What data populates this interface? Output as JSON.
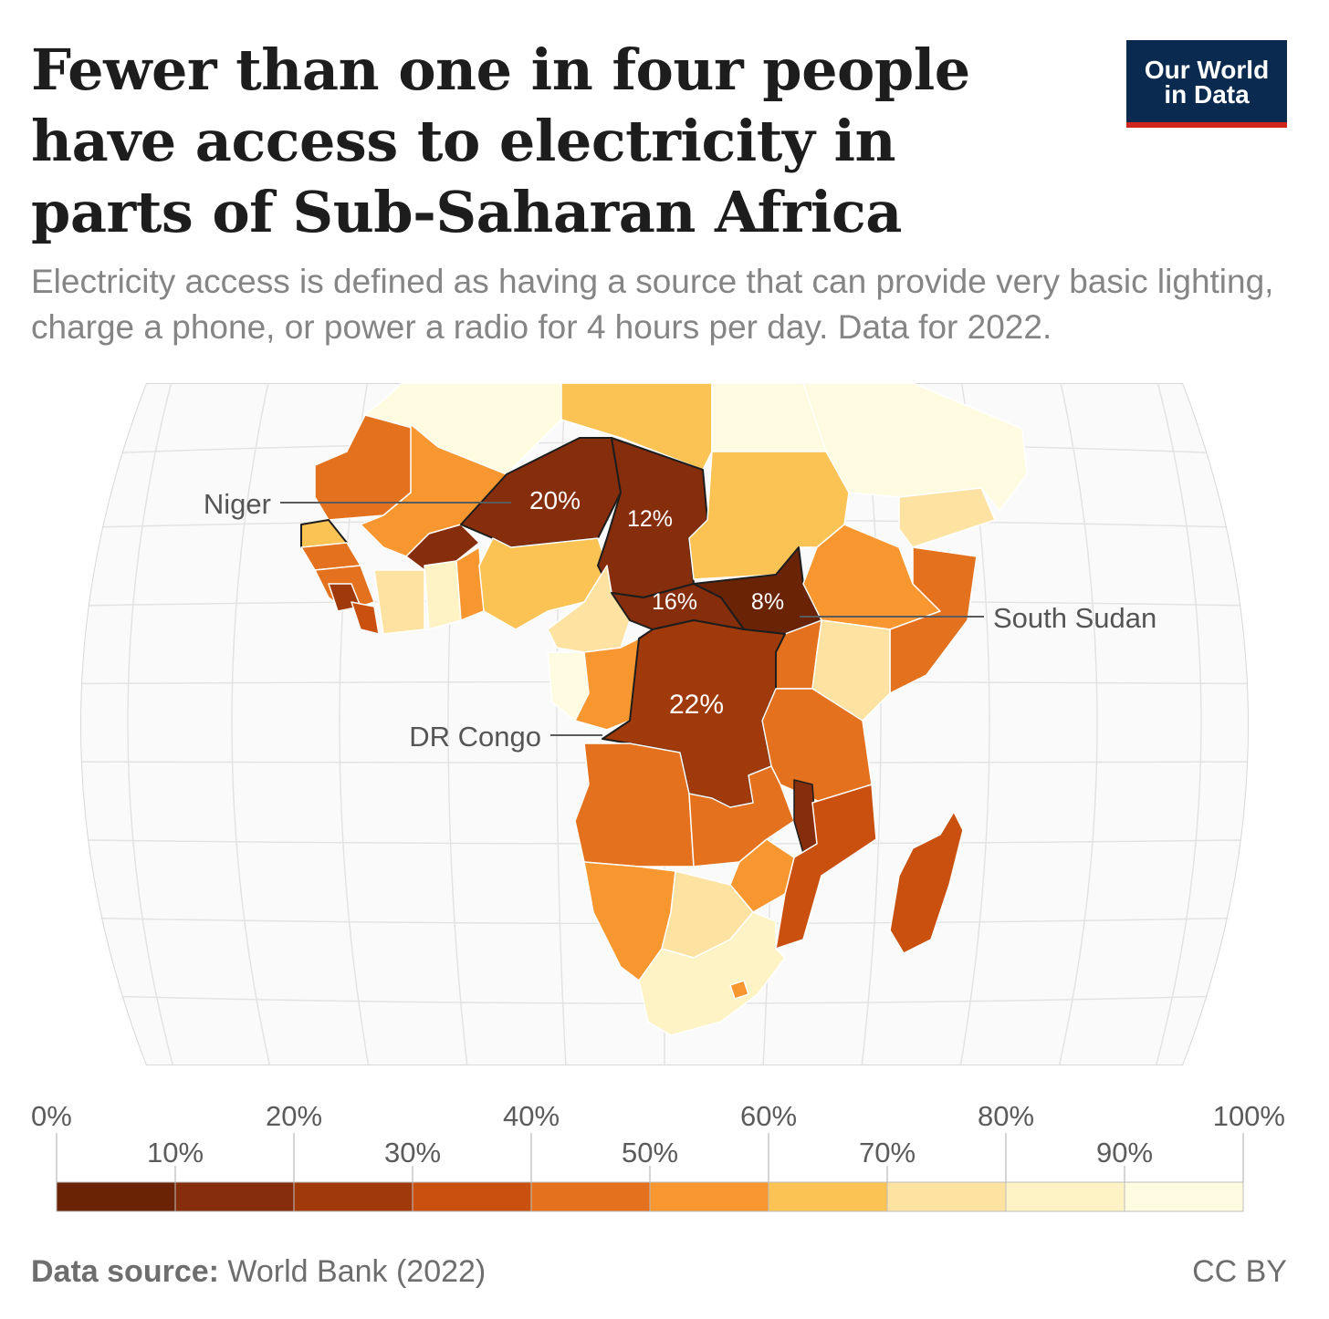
{
  "header": {
    "title": "Fewer than one in four people have access to electricity in parts of Sub-Saharan Africa",
    "subtitle": "Electricity access is defined as having a source that can provide very basic lighting, charge a phone, or power a radio for 4 hours per day. Data for 2022.",
    "logo_line1": "Our World",
    "logo_line2": "in Data"
  },
  "map": {
    "region": "Africa",
    "highlighted": [
      {
        "country": "Niger",
        "label": "Niger",
        "value": 20,
        "value_label": "20%"
      },
      {
        "country": "Chad",
        "value": 12,
        "value_label": "12%"
      },
      {
        "country": "Central African Republic",
        "value": 16,
        "value_label": "16%"
      },
      {
        "country": "South Sudan",
        "label": "South Sudan",
        "value": 8,
        "value_label": "8%"
      },
      {
        "country": "DR Congo",
        "label": "DR Congo",
        "value": 22,
        "value_label": "22%"
      }
    ]
  },
  "legend": {
    "ticks_top": [
      "0%",
      "20%",
      "40%",
      "60%",
      "80%",
      "100%"
    ],
    "ticks_bottom": [
      "10%",
      "30%",
      "50%",
      "70%",
      "90%"
    ],
    "colors": [
      "#6b2306",
      "#862d0b",
      "#a13a0a",
      "#c9500e",
      "#e4711e",
      "#f8962f",
      "#fbc254",
      "#fde2a1",
      "#fef3c5",
      "#fffbe1"
    ]
  },
  "footer": {
    "source_label": "Data source:",
    "source_text": " World Bank (2022)",
    "license": "CC BY"
  }
}
